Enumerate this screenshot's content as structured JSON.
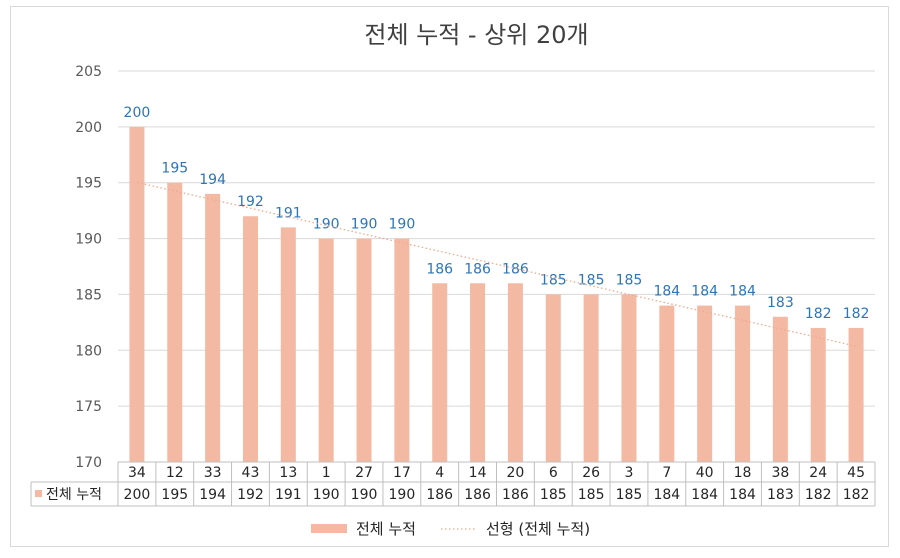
{
  "chart_data": {
    "type": "bar",
    "title": "전체 누적 - 상위 20개",
    "categories": [
      "34",
      "12",
      "33",
      "43",
      "13",
      "1",
      "27",
      "17",
      "4",
      "14",
      "20",
      "6",
      "26",
      "3",
      "7",
      "40",
      "18",
      "38",
      "24",
      "45"
    ],
    "series": [
      {
        "name": "전체 누적",
        "values": [
          200,
          195,
          194,
          192,
          191,
          190,
          190,
          190,
          186,
          186,
          186,
          185,
          185,
          185,
          184,
          184,
          184,
          183,
          182,
          182
        ]
      }
    ],
    "trendline": {
      "name": "선형 (전체 누적)",
      "type": "linear"
    },
    "ylim": [
      170,
      205
    ],
    "yticks": [
      170,
      175,
      180,
      185,
      190,
      195,
      200,
      205
    ],
    "grid": true,
    "data_table": true,
    "legend": "bottom",
    "colors": {
      "bar": "#f4b9a3",
      "trend": "#f4b9a3",
      "label": "#2e75b6",
      "grid": "#d9d9d9"
    }
  }
}
